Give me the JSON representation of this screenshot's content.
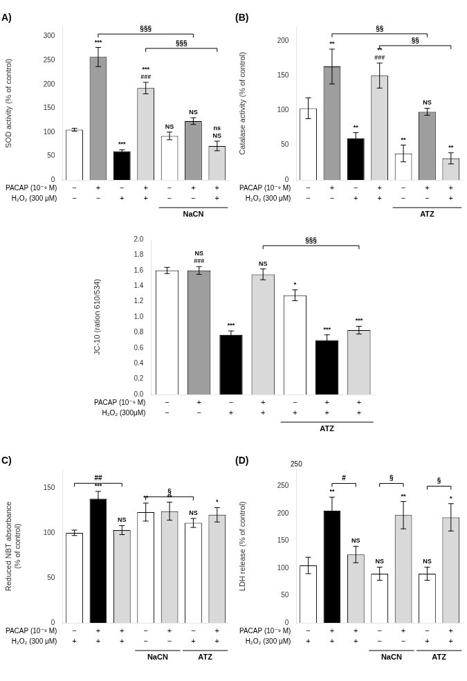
{
  "chart_data": [
    {
      "type": "bar",
      "title": "A)",
      "y_label": "SOD activity (% of control)",
      "categories": [
        [
          "−",
          "−"
        ],
        [
          "+",
          "−"
        ],
        [
          "−",
          "+"
        ],
        [
          "+",
          "+"
        ],
        [
          "−",
          "−"
        ],
        [
          "+",
          "−"
        ],
        [
          "+",
          "+"
        ]
      ],
      "category_rows": [
        "PACAP (10⁻⁹ M)",
        "H₂O₂ (300 μM)"
      ],
      "values": [
        105,
        257,
        60,
        192,
        92,
        123,
        71
      ],
      "errors": [
        3,
        20,
        3,
        12,
        8,
        7,
        10
      ],
      "colors": [
        "#ffffff",
        "#9e9e9e",
        "#000000",
        "#d9d9d9",
        "#ffffff",
        "#9e9e9e",
        "#d9d9d9"
      ],
      "sig_labels": [
        null,
        [
          "***"
        ],
        [
          "***"
        ],
        [
          "***",
          "###"
        ],
        [
          "NS"
        ],
        [
          "NS"
        ],
        [
          "ns",
          "NS"
        ]
      ],
      "brackets": [
        {
          "from": 1,
          "to": 5,
          "y": 305,
          "label": "§§§"
        },
        {
          "from": 3,
          "to": 6,
          "y": 275,
          "label": "§§§"
        }
      ],
      "groups": [
        {
          "from": 4,
          "to": 6,
          "label": "NaCN"
        }
      ],
      "ylim": [
        0,
        320
      ],
      "yticks": [
        0,
        50,
        100,
        150,
        200,
        250,
        300
      ],
      "grid": false
    },
    {
      "type": "bar",
      "title": "(B)",
      "y_label": "Catalase activity (% of control)",
      "categories": [
        [
          "−",
          "−"
        ],
        [
          "+",
          "−"
        ],
        [
          "−",
          "+"
        ],
        [
          "+",
          "+"
        ],
        [
          "−",
          "−"
        ],
        [
          "+",
          "−"
        ],
        [
          "+",
          "+"
        ]
      ],
      "category_rows": [
        "PACAP (10⁻⁹ M)",
        "H₂O₂ (300 μM)"
      ],
      "values": [
        103,
        163,
        60,
        150,
        38,
        98,
        31
      ],
      "errors": [
        15,
        25,
        8,
        18,
        12,
        5,
        8
      ],
      "colors": [
        "#ffffff",
        "#9e9e9e",
        "#000000",
        "#d9d9d9",
        "#ffffff",
        "#9e9e9e",
        "#d9d9d9"
      ],
      "sig_labels": [
        null,
        [
          "**"
        ],
        [
          "**"
        ],
        [
          "**",
          "###"
        ],
        [
          "**"
        ],
        [
          "NS"
        ],
        [
          "**"
        ]
      ],
      "brackets": [
        {
          "from": 1,
          "to": 5,
          "y": 210,
          "label": "§§"
        },
        {
          "from": 3,
          "to": 6,
          "y": 193,
          "label": "§§"
        }
      ],
      "groups": [
        {
          "from": 4,
          "to": 6,
          "label": "ATZ"
        }
      ],
      "ylim": [
        0,
        220
      ],
      "yticks": [
        0,
        50,
        100,
        150,
        200
      ],
      "grid": false
    },
    {
      "type": "bar",
      "y_label": "JC-10 (ration 610/534)",
      "categories": [
        [
          "−",
          "−"
        ],
        [
          "+",
          "−"
        ],
        [
          "−",
          "+"
        ],
        [
          "+",
          "+"
        ],
        [
          "−",
          "+"
        ],
        [
          "+",
          "+"
        ],
        [
          "+",
          "+"
        ]
      ],
      "category_rows": [
        "PACAP (10⁻⁹ M)",
        "H₂O₂ (300μM)"
      ],
      "values": [
        1.6,
        1.6,
        0.77,
        1.55,
        1.28,
        0.7,
        0.83
      ],
      "errors": [
        0.04,
        0.05,
        0.05,
        0.07,
        0.07,
        0.07,
        0.05
      ],
      "colors": [
        "#ffffff",
        "#9e9e9e",
        "#000000",
        "#d9d9d9",
        "#ffffff",
        "#000000",
        "#d9d9d9"
      ],
      "sig_labels": [
        null,
        [
          "NS",
          "###"
        ],
        [
          "***"
        ],
        [
          "NS"
        ],
        [
          "*"
        ],
        [
          "***"
        ],
        [
          "***"
        ]
      ],
      "brackets": [
        {
          "from": 3,
          "to": 6,
          "y": 1.92,
          "label": "§§§"
        }
      ],
      "groups": [
        {
          "from": 4,
          "to": 6,
          "label": "ATZ"
        }
      ],
      "ylim": [
        0,
        2.0
      ],
      "yticks": [
        {
          "value": 0,
          "label": "0.0"
        },
        0.2,
        0.4,
        0.6,
        0.8,
        {
          "value": 1,
          "label": "1.0"
        },
        1.2,
        1.4,
        1.6,
        1.8,
        {
          "value": 2,
          "label": "2.0"
        }
      ],
      "grid": false
    },
    {
      "type": "bar",
      "title": "C)",
      "y_label": "Reduced NBT absorbance\n(% of control)",
      "categories": [
        [
          "−",
          "+"
        ],
        [
          "+",
          "+"
        ],
        [
          "+",
          "+"
        ],
        [
          "−",
          "−"
        ],
        [
          "+",
          "−"
        ],
        [
          "−",
          "+"
        ],
        [
          "+",
          "+"
        ]
      ],
      "category_rows": [
        "PACAP (10⁻⁹ M)",
        "H₂O₂ (300 μM)"
      ],
      "values": [
        100,
        138,
        103,
        123,
        124,
        111,
        120
      ],
      "errors": [
        3,
        8,
        5,
        10,
        10,
        5,
        8
      ],
      "colors": [
        "#ffffff",
        "#000000",
        "#d9d9d9",
        "#ffffff",
        "#d9d9d9",
        "#ffffff",
        "#d9d9d9"
      ],
      "sig_labels": [
        null,
        [
          "***"
        ],
        [
          "NS"
        ],
        [
          "**"
        ],
        [
          "**"
        ],
        [
          "NS"
        ],
        [
          "*"
        ]
      ],
      "brackets": [
        {
          "from": 0,
          "to": 2,
          "y": 155,
          "label": "##"
        },
        {
          "from": 3,
          "to": 5,
          "y": 140,
          "label": "§"
        }
      ],
      "groups": [
        {
          "from": 3,
          "to": 4,
          "label": "NaCN"
        },
        {
          "from": 5,
          "to": 6,
          "label": "ATZ"
        }
      ],
      "ylim": [
        0,
        170
      ],
      "yticks": [
        0,
        50,
        100,
        150
      ],
      "grid": false
    },
    {
      "type": "bar",
      "title": "(D)",
      "y_label": "LDH release (% of control)",
      "categories": [
        [
          "−",
          "+"
        ],
        [
          "+",
          "+"
        ],
        [
          "+",
          "+"
        ],
        [
          "−",
          "−"
        ],
        [
          "+",
          "−"
        ],
        [
          "−",
          "+"
        ],
        [
          "+",
          "+"
        ]
      ],
      "category_rows": [
        "PACAP (10⁻⁹ M)",
        "H₂O₂ (300 μM)"
      ],
      "values": [
        105,
        205,
        125,
        90,
        197,
        90,
        193
      ],
      "errors": [
        15,
        25,
        15,
        12,
        25,
        12,
        25
      ],
      "colors": [
        "#ffffff",
        "#000000",
        "#d9d9d9",
        "#ffffff",
        "#d9d9d9",
        "#ffffff",
        "#d9d9d9"
      ],
      "sig_labels": [
        null,
        [
          "**"
        ],
        [
          "NS"
        ],
        [
          "NS"
        ],
        [
          "**"
        ],
        [
          "NS"
        ],
        [
          "*"
        ]
      ],
      "brackets": [
        {
          "from": 1,
          "to": 2,
          "y": 255,
          "label": "#"
        },
        {
          "from": 3,
          "to": 4,
          "y": 255,
          "label": "§"
        },
        {
          "from": 5,
          "to": 6,
          "y": 250,
          "label": "§"
        }
      ],
      "groups": [
        {
          "from": 3,
          "to": 4,
          "label": "NaCN"
        },
        {
          "from": 5,
          "to": 6,
          "label": "ATZ"
        }
      ],
      "annotations": [
        "250"
      ],
      "ylim": [
        0,
        280
      ],
      "yticks": [
        0,
        50,
        100,
        150,
        200,
        250
      ],
      "grid": false
    }
  ]
}
